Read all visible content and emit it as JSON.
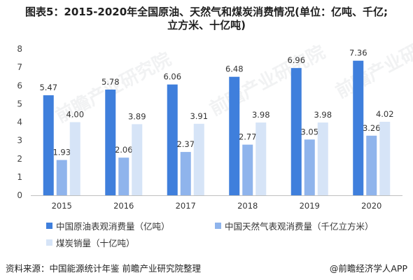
{
  "title_line1": "图表5：2015-2020年全国原油、天然气和煤炭消费情况(单位：亿吨、千亿;",
  "title_line2": "立方米、十亿吨)",
  "source_left": "资料来源：中国能源统计年鉴 前瞻产业研究院整理",
  "source_right": "@前瞻经济学人APP",
  "watermark": "前瞻产业研究院",
  "colors": {
    "oil": "#3f7fdc",
    "gas": "#8fb4ec",
    "coal": "#d6e4f7"
  },
  "chart_data": {
    "type": "bar",
    "categories": [
      "2015",
      "2016",
      "2017",
      "2018",
      "2019",
      "2020"
    ],
    "ylim": [
      0,
      8
    ],
    "yticks": [
      0,
      1,
      2,
      3,
      4,
      5,
      6,
      7,
      8
    ],
    "grid": false,
    "legend_position": "bottom",
    "series": [
      {
        "name": "中国原油表观消费量（亿吨）",
        "color_key": "oil",
        "values": [
          5.47,
          5.78,
          6.06,
          6.48,
          6.96,
          7.36
        ]
      },
      {
        "name": "中国天然气表观消费量（千亿立方米）",
        "color_key": "gas",
        "values": [
          1.93,
          2.06,
          2.37,
          2.77,
          3.05,
          3.26
        ]
      },
      {
        "name": "煤炭销量（十亿吨）",
        "color_key": "coal",
        "values": [
          4.0,
          3.89,
          3.91,
          3.98,
          3.98,
          4.02
        ]
      }
    ],
    "value_labels": [
      [
        "5.47",
        "5.78",
        "6.06",
        "6.48",
        "6.96",
        "7.36"
      ],
      [
        "1.93",
        "2.06",
        "2.37",
        "2.77",
        "3.05",
        "3.26"
      ],
      [
        "4.00",
        "3.89",
        "3.91",
        "3.98",
        "3.98",
        "4.02"
      ]
    ]
  }
}
